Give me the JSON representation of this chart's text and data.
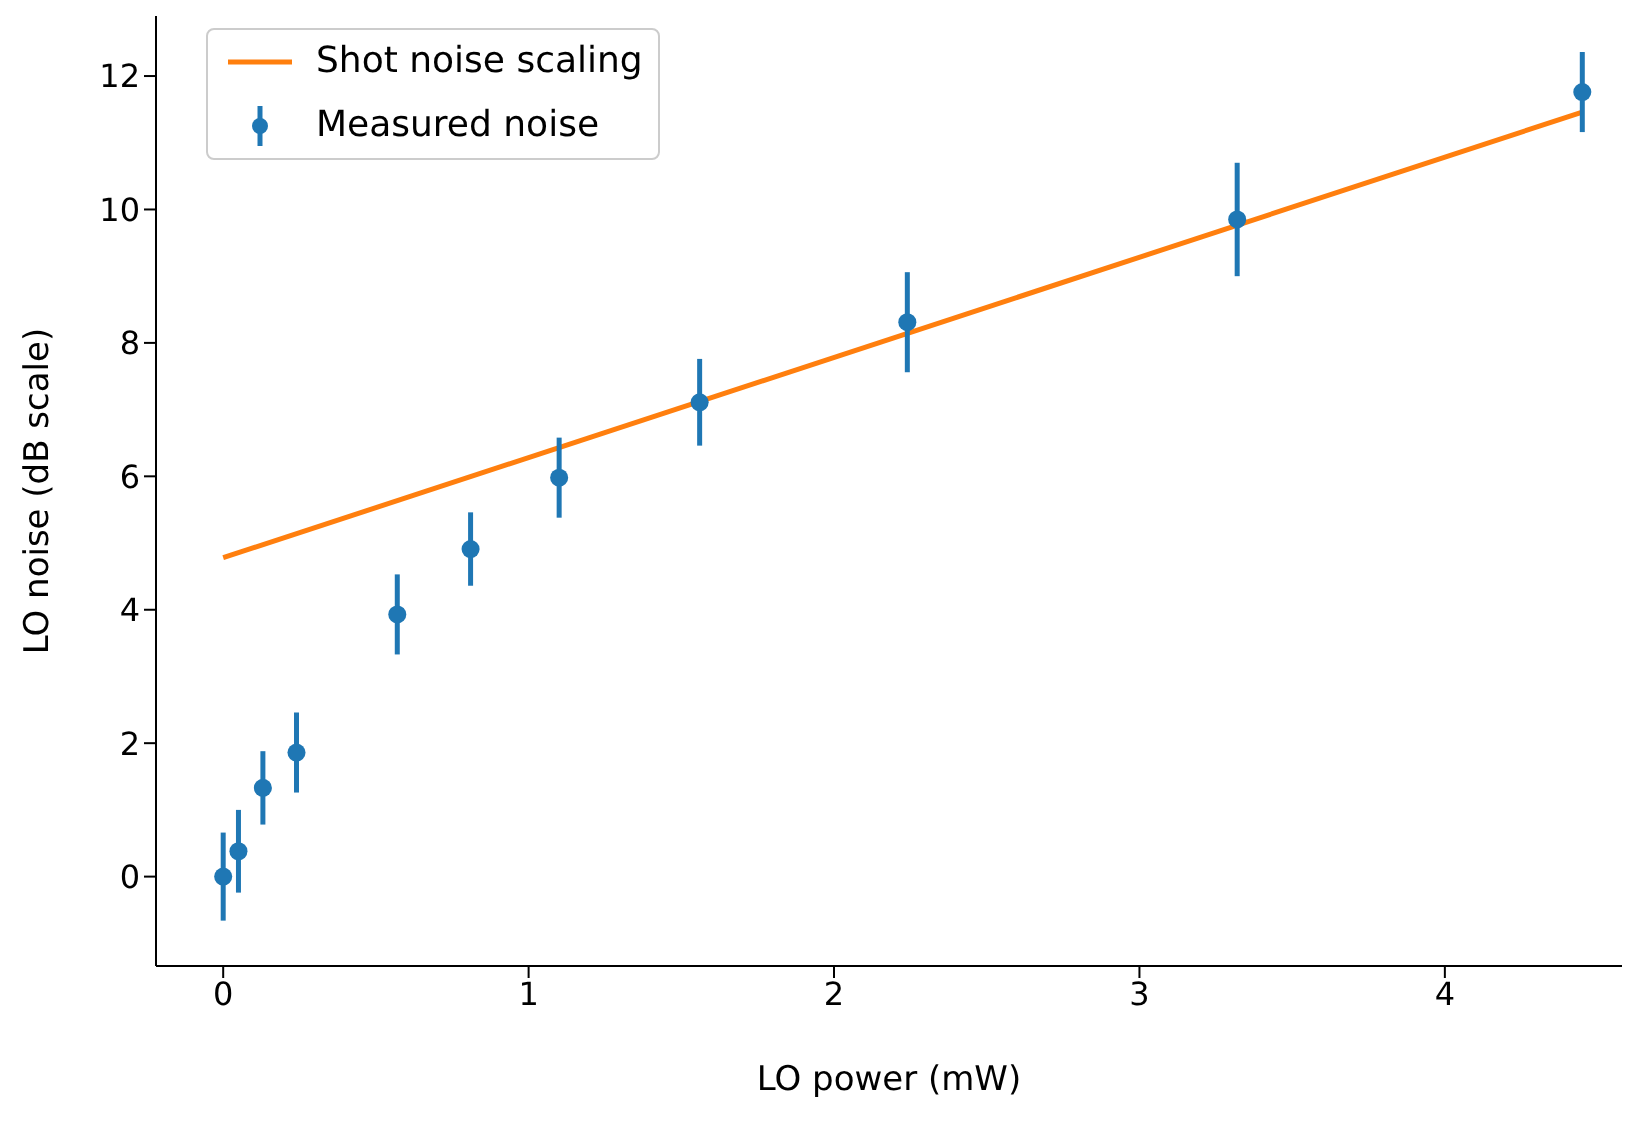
{
  "chart_data": {
    "type": "scatter",
    "xlabel": "LO power (mW)",
    "ylabel": "LO noise (dB scale)",
    "xlim": [
      -0.22,
      4.58
    ],
    "xticks": [
      0,
      1,
      2,
      3,
      4
    ],
    "ylim": [
      -1.34,
      12.9
    ],
    "yticks": [
      0,
      2,
      4,
      6,
      8,
      10,
      12
    ],
    "grid": false,
    "legend": "top left",
    "marker": "circle",
    "series": [
      {
        "name": "Shot noise scaling",
        "type": "line",
        "color": "#ff7f0e",
        "marker": "none",
        "x": [
          0,
          4.45
        ],
        "values": [
          4.78,
          11.46
        ]
      },
      {
        "name": "Measured noise",
        "color": "#1f77b4",
        "x": [
          0,
          0.05,
          0.13,
          0.24,
          0.57,
          0.81,
          1.1,
          1.56,
          2.24,
          3.32,
          4.45
        ],
        "values": [
          0,
          0.38,
          1.33,
          1.86,
          3.93,
          4.91,
          5.98,
          7.11,
          8.31,
          9.85,
          11.76
        ],
        "errors": [
          0.66,
          0.62,
          0.55,
          0.6,
          0.6,
          0.55,
          0.6,
          0.65,
          0.75,
          0.85,
          0.6
        ]
      }
    ]
  }
}
